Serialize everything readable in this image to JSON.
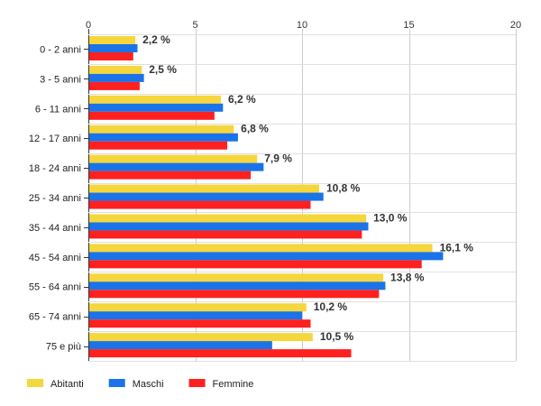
{
  "chart_data": {
    "type": "bar",
    "orientation": "horizontal",
    "title": "",
    "xlabel": "",
    "ylabel": "",
    "xlim": [
      0,
      20
    ],
    "x_ticks": [
      0,
      5,
      10,
      15,
      20
    ],
    "grid": true,
    "legend_position": "bottom-left",
    "categories": [
      "0 - 2 anni",
      "3 - 5 anni",
      "6 - 11 anni",
      "12 - 17 anni",
      "18 - 24 anni",
      "25 - 34 anni",
      "35 - 44 anni",
      "45 - 54 anni",
      "55 - 64 anni",
      "65 - 74 anni",
      "75 e più"
    ],
    "series": [
      {
        "name": "Abitanti",
        "color": "#f5d63d",
        "values": [
          2.2,
          2.5,
          6.2,
          6.8,
          7.9,
          10.8,
          13.0,
          16.1,
          13.8,
          10.2,
          10.5
        ]
      },
      {
        "name": "Maschi",
        "color": "#1a73e8",
        "values": [
          2.3,
          2.6,
          6.3,
          7.0,
          8.2,
          11.0,
          13.1,
          16.6,
          13.9,
          10.0,
          8.6
        ]
      },
      {
        "name": "Femmine",
        "color": "#ff2020",
        "values": [
          2.1,
          2.4,
          5.9,
          6.5,
          7.6,
          10.4,
          12.8,
          15.6,
          13.6,
          10.4,
          12.3
        ]
      }
    ],
    "data_labels": [
      "2,2 %",
      "2,5 %",
      "6,2 %",
      "6,8 %",
      "7,9 %",
      "10,8 %",
      "13,0 %",
      "16,1 %",
      "13,8 %",
      "10,2 %",
      "10,5 %"
    ]
  }
}
